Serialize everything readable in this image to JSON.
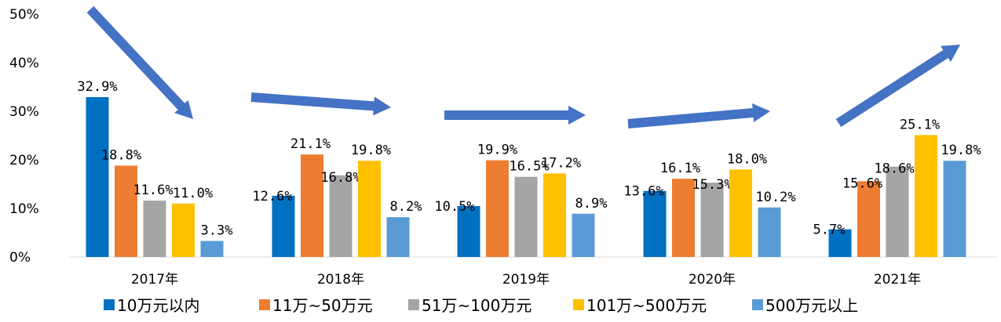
{
  "chart_data": {
    "type": "bar",
    "categories": [
      "2017年",
      "2018年",
      "2019年",
      "2020年",
      "2021年"
    ],
    "series": [
      {
        "name": "10万元以内",
        "color": "#0070c0",
        "values": [
          32.9,
          12.6,
          10.5,
          13.6,
          5.7
        ],
        "labels": [
          "32.9%",
          "12.6%",
          "10.5%",
          "13.6%",
          "5.7%"
        ]
      },
      {
        "name": "11万~50万元",
        "color": "#ed7d31",
        "values": [
          18.8,
          21.1,
          19.9,
          16.1,
          15.6
        ],
        "labels": [
          "18.8%",
          "21.1%",
          "19.9%",
          "16.1%",
          "15.6%"
        ]
      },
      {
        "name": "51万~100万元",
        "color": "#a5a5a5",
        "values": [
          11.6,
          16.8,
          16.5,
          15.3,
          18.6
        ],
        "labels": [
          "11.6%",
          "16.8%",
          "16.5%",
          "15.3%",
          "18.6%"
        ]
      },
      {
        "name": "101万~500万元",
        "color": "#ffc000",
        "values": [
          11.0,
          19.8,
          17.2,
          18.0,
          25.1
        ],
        "labels": [
          "11.0%",
          "19.8%",
          "17.2%",
          "18.0%",
          "25.1%"
        ]
      },
      {
        "name": "500万元以上",
        "color": "#5b9bd5",
        "values": [
          3.3,
          8.2,
          8.9,
          10.2,
          19.8
        ],
        "labels": [
          "3.3%",
          "8.2%",
          "8.9%",
          "10.2%",
          "19.8%"
        ]
      }
    ],
    "ylim": [
      0,
      50
    ],
    "yticks": [
      "0%",
      "10%",
      "20%",
      "30%",
      "40%",
      "50%"
    ],
    "legend_position": "bottom",
    "grid": false,
    "trend_arrows": {
      "color": "#4472c4",
      "count": 5
    }
  }
}
